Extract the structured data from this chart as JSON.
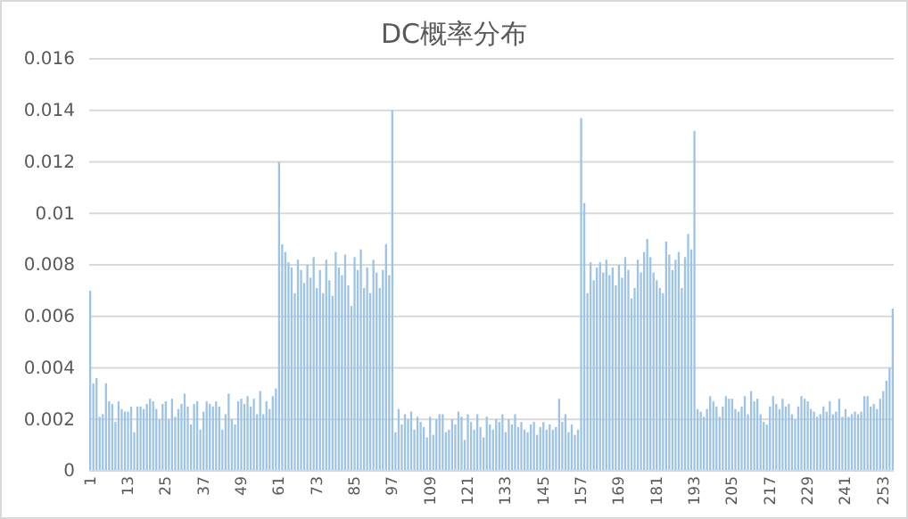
{
  "chart_data": {
    "type": "bar",
    "title": "DC概率分布",
    "categories": [
      "1",
      null,
      null,
      null,
      null,
      null,
      null,
      null,
      null,
      null,
      null,
      null,
      "13",
      null,
      null,
      null,
      null,
      null,
      null,
      null,
      null,
      null,
      null,
      null,
      "25",
      null,
      null,
      null,
      null,
      null,
      null,
      null,
      null,
      null,
      null,
      null,
      "37",
      null,
      null,
      null,
      null,
      null,
      null,
      null,
      null,
      null,
      null,
      null,
      "49",
      null,
      null,
      null,
      null,
      null,
      null,
      null,
      null,
      null,
      null,
      null,
      "61",
      null,
      null,
      null,
      null,
      null,
      null,
      null,
      null,
      null,
      null,
      null,
      "73",
      null,
      null,
      null,
      null,
      null,
      null,
      null,
      null,
      null,
      null,
      null,
      "85",
      null,
      null,
      null,
      null,
      null,
      null,
      null,
      null,
      null,
      null,
      null,
      "97",
      null,
      null,
      null,
      null,
      null,
      null,
      null,
      null,
      null,
      null,
      null,
      "109",
      null,
      null,
      null,
      null,
      null,
      null,
      null,
      null,
      null,
      null,
      null,
      "121",
      null,
      null,
      null,
      null,
      null,
      null,
      null,
      null,
      null,
      null,
      null,
      "133",
      null,
      null,
      null,
      null,
      null,
      null,
      null,
      null,
      null,
      null,
      null,
      "145",
      null,
      null,
      null,
      null,
      null,
      null,
      null,
      null,
      null,
      null,
      null,
      "157",
      null,
      null,
      null,
      null,
      null,
      null,
      null,
      null,
      null,
      null,
      null,
      "169",
      null,
      null,
      null,
      null,
      null,
      null,
      null,
      null,
      null,
      null,
      null,
      "181",
      null,
      null,
      null,
      null,
      null,
      null,
      null,
      null,
      null,
      null,
      null,
      "193",
      null,
      null,
      null,
      null,
      null,
      null,
      null,
      null,
      null,
      null,
      null,
      "205",
      null,
      null,
      null,
      null,
      null,
      null,
      null,
      null,
      null,
      null,
      null,
      "217",
      null,
      null,
      null,
      null,
      null,
      null,
      null,
      null,
      null,
      null,
      null,
      "229",
      null,
      null,
      null,
      null,
      null,
      null,
      null,
      null,
      null,
      null,
      null,
      "241",
      null,
      null,
      null,
      null,
      null,
      null,
      null,
      null,
      null,
      null,
      null,
      "253",
      null,
      null,
      null
    ],
    "series": [
      {
        "color": "#9dc3e6",
        "values": [
          0.007,
          0.0034,
          0.0036,
          0.0021,
          0.0022,
          0.0034,
          0.0027,
          0.0026,
          0.0019,
          0.0027,
          0.0024,
          0.0023,
          0.0023,
          0.0025,
          0.0015,
          0.0025,
          0.0025,
          0.0024,
          0.0026,
          0.0028,
          0.0027,
          0.0024,
          0.002,
          0.0026,
          0.0027,
          0.002,
          0.0028,
          0.0021,
          0.0024,
          0.0026,
          0.003,
          0.0025,
          0.0018,
          0.0026,
          0.0027,
          0.0016,
          0.0023,
          0.0027,
          0.0026,
          0.0025,
          0.0027,
          0.0025,
          0.0016,
          0.0022,
          0.003,
          0.002,
          0.0018,
          0.0027,
          0.0028,
          0.0026,
          0.0029,
          0.0025,
          0.0028,
          0.0022,
          0.0031,
          0.0022,
          0.0027,
          0.0024,
          0.0029,
          0.0032,
          0.012,
          0.0088,
          0.0085,
          0.0081,
          0.0079,
          0.0069,
          0.0082,
          0.0078,
          0.0073,
          0.008,
          0.0075,
          0.0083,
          0.0071,
          0.0078,
          0.0069,
          0.0082,
          0.0074,
          0.0068,
          0.0085,
          0.0079,
          0.0076,
          0.0084,
          0.0072,
          0.0064,
          0.0083,
          0.0078,
          0.0086,
          0.0071,
          0.0079,
          0.0069,
          0.0082,
          0.0077,
          0.0071,
          0.0078,
          0.0088,
          0.0076,
          0.014,
          0.0015,
          0.0024,
          0.0018,
          0.0022,
          0.002,
          0.0023,
          0.0016,
          0.0021,
          0.0019,
          0.0017,
          0.0013,
          0.0021,
          0.0014,
          0.002,
          0.0022,
          0.0022,
          0.0015,
          0.0016,
          0.002,
          0.0018,
          0.0023,
          0.0021,
          0.0012,
          0.0022,
          0.0019,
          0.0016,
          0.0022,
          0.0017,
          0.0013,
          0.0021,
          0.0018,
          0.0016,
          0.002,
          0.0019,
          0.0022,
          0.0015,
          0.002,
          0.0018,
          0.0022,
          0.0017,
          0.0019,
          0.0016,
          0.0015,
          0.0018,
          0.0019,
          0.0014,
          0.0017,
          0.0019,
          0.0016,
          0.0018,
          0.0016,
          0.0017,
          0.0028,
          0.0019,
          0.0022,
          0.0015,
          0.0018,
          0.0014,
          0.0016,
          0.0137,
          0.0104,
          0.0069,
          0.0081,
          0.0074,
          0.0079,
          0.0081,
          0.0077,
          0.0082,
          0.0076,
          0.0079,
          0.0072,
          0.008,
          0.0075,
          0.0083,
          0.0078,
          0.0067,
          0.0071,
          0.0082,
          0.0077,
          0.0085,
          0.009,
          0.0083,
          0.0077,
          0.0074,
          0.0071,
          0.0069,
          0.0089,
          0.0084,
          0.0078,
          0.0082,
          0.0085,
          0.0071,
          0.0083,
          0.0092,
          0.0086,
          0.0132,
          0.0024,
          0.0023,
          0.0021,
          0.0024,
          0.0029,
          0.0027,
          0.0025,
          0.0021,
          0.0025,
          0.0029,
          0.0028,
          0.0028,
          0.0024,
          0.0023,
          0.0025,
          0.0029,
          0.0022,
          0.0031,
          0.0027,
          0.0028,
          0.0022,
          0.0019,
          0.0018,
          0.0025,
          0.0029,
          0.0026,
          0.0024,
          0.0028,
          0.0025,
          0.0026,
          0.0022,
          0.002,
          0.0025,
          0.0029,
          0.0028,
          0.0027,
          0.0024,
          0.0023,
          0.0021,
          0.0022,
          0.0025,
          0.0023,
          0.0027,
          0.0022,
          0.0023,
          0.0028,
          0.0021,
          0.0024,
          0.0021,
          0.0022,
          0.0023,
          0.0022,
          0.0023,
          0.0029,
          0.0029,
          0.0025,
          0.0026,
          0.0024,
          0.0028,
          0.0031,
          0.0035,
          0.004,
          0.0063
        ]
      }
    ],
    "ylim": [
      0,
      0.016
    ],
    "yticks": [
      0,
      0.002,
      0.004,
      0.006,
      0.008,
      0.01,
      0.012,
      0.014,
      0.016
    ],
    "grid": "y"
  }
}
